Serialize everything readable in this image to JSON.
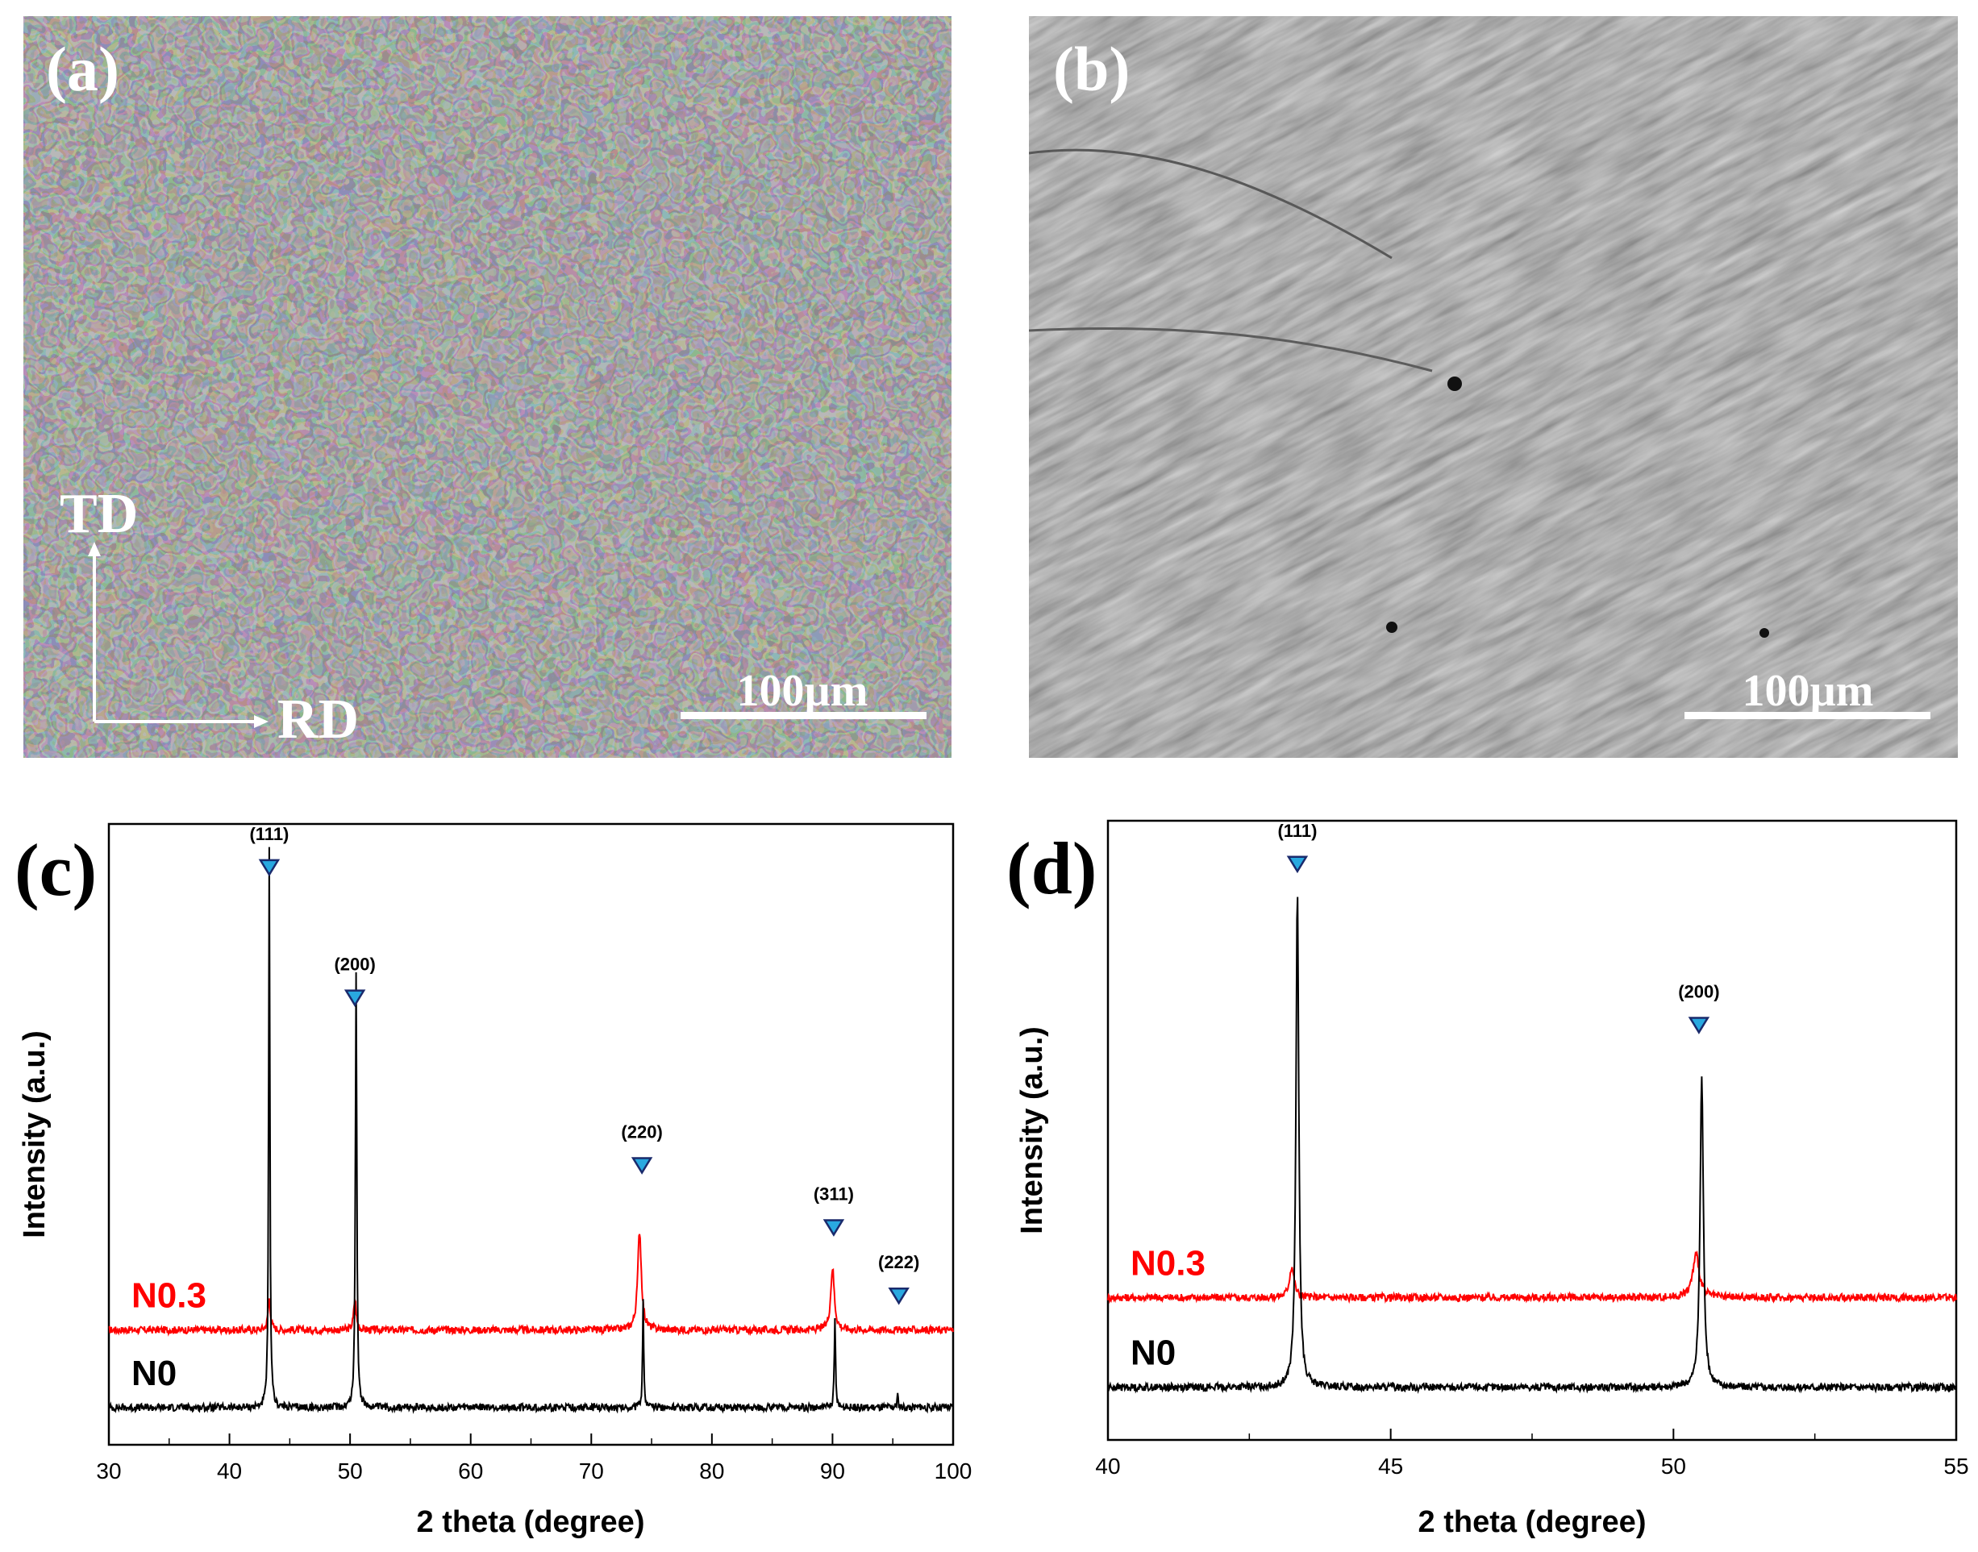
{
  "micrographs": [
    {
      "label": "(a)",
      "scale_bar": "100µm",
      "axes": {
        "vertical": "TD",
        "horizontal": "RD"
      }
    },
    {
      "label": "(b)",
      "scale_bar": "100µm"
    }
  ],
  "chart_data": [
    {
      "panel_label": "(c)",
      "type": "line",
      "xlabel": "2 theta (degree)",
      "ylabel": "Intensity (a.u.)",
      "xlim": [
        30,
        100
      ],
      "xticks": [
        30,
        40,
        50,
        60,
        70,
        80,
        90,
        100
      ],
      "peak_markers": [
        {
          "x": 43.3,
          "label": "(111)",
          "level": 0.93
        },
        {
          "x": 50.4,
          "label": "(200)",
          "level": 0.72
        },
        {
          "x": 74.2,
          "label": "(220)",
          "level": 0.45
        },
        {
          "x": 90.1,
          "label": "(311)",
          "level": 0.35
        },
        {
          "x": 95.5,
          "label": "(222)",
          "level": 0.24
        }
      ],
      "series": [
        {
          "name": "N0.3",
          "color": "#ff0000",
          "baseline": 0.185,
          "peaks": [
            {
              "x": 43.3,
              "height": 0.05,
              "width": 0.12
            },
            {
              "x": 50.4,
              "height": 0.05,
              "width": 0.12
            },
            {
              "x": 74.0,
              "height": 0.16,
              "width": 0.18
            },
            {
              "x": 90.0,
              "height": 0.1,
              "width": 0.18
            }
          ]
        },
        {
          "name": "N0",
          "color": "#000000",
          "baseline": 0.06,
          "peaks": [
            {
              "x": 43.3,
              "height": 0.9,
              "width": 0.06
            },
            {
              "x": 50.5,
              "height": 0.7,
              "width": 0.07
            },
            {
              "x": 74.3,
              "height": 0.17,
              "width": 0.06
            },
            {
              "x": 90.2,
              "height": 0.14,
              "width": 0.06
            },
            {
              "x": 95.4,
              "height": 0.02,
              "width": 0.05
            }
          ]
        }
      ]
    },
    {
      "panel_label": "(d)",
      "type": "line",
      "xlabel": "2 theta (degree)",
      "ylabel": "Intensity (a.u.)",
      "xlim": [
        40,
        55
      ],
      "xticks": [
        40,
        45,
        50,
        55
      ],
      "peak_markers": [
        {
          "x": 43.35,
          "label": "(111)",
          "level": 0.93
        },
        {
          "x": 50.45,
          "label": "(200)",
          "level": 0.67
        }
      ],
      "series": [
        {
          "name": "N0.3",
          "color": "#ff0000",
          "baseline": 0.23,
          "peaks": [
            {
              "x": 43.25,
              "height": 0.05,
              "width": 0.05
            },
            {
              "x": 50.4,
              "height": 0.07,
              "width": 0.07
            }
          ]
        },
        {
          "name": "N0",
          "color": "#000000",
          "baseline": 0.085,
          "peaks": [
            {
              "x": 43.35,
              "height": 0.8,
              "width": 0.03
            },
            {
              "x": 50.5,
              "height": 0.5,
              "width": 0.035
            }
          ]
        }
      ]
    }
  ]
}
